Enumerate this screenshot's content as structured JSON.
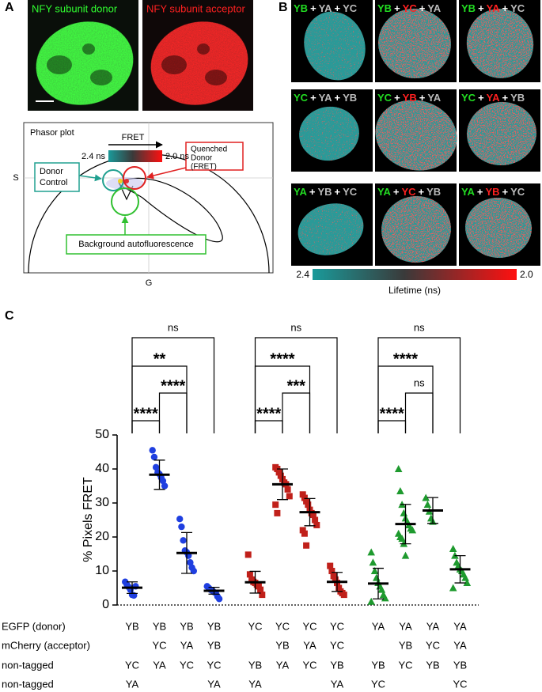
{
  "panel_a": {
    "letter": "A",
    "donor_label": "NFY subunit donor",
    "acceptor_label": "NFY subunit acceptor",
    "phasor": {
      "title": "Phasor plot",
      "arrow_label": "FRET",
      "left_label": "2.4 ns",
      "right_label": "2.0 ns",
      "quenched": [
        "Quenched",
        "Donor",
        "(FRET)"
      ],
      "donor_control": [
        "Donor",
        "Control"
      ],
      "background": "Background autofluorescence",
      "s_label": "S",
      "g_label": "G"
    }
  },
  "panel_b": {
    "letter": "B",
    "tiles": [
      {
        "label": [
          "YB",
          "+",
          "YA",
          "+",
          "YC"
        ],
        "colors": [
          "#22dd22",
          "#ffffff",
          "#bbbbbb",
          "#ffffff",
          "#bbbbbb"
        ]
      },
      {
        "label": [
          "YB",
          "+",
          "YC",
          "+",
          "YA"
        ],
        "colors": [
          "#22dd22",
          "#ffffff",
          "#ff2020",
          "#ffffff",
          "#bbbbbb"
        ]
      },
      {
        "label": [
          "YB",
          "+",
          "YA",
          "+",
          "YC"
        ],
        "colors": [
          "#22dd22",
          "#ffffff",
          "#ff2020",
          "#ffffff",
          "#bbbbbb"
        ]
      },
      {
        "label": [
          "YC",
          "+",
          "YA",
          "+",
          "YB"
        ],
        "colors": [
          "#22dd22",
          "#ffffff",
          "#bbbbbb",
          "#ffffff",
          "#bbbbbb"
        ]
      },
      {
        "label": [
          "YC",
          "+",
          "YB",
          "+",
          "YA"
        ],
        "colors": [
          "#22dd22",
          "#ffffff",
          "#ff2020",
          "#ffffff",
          "#bbbbbb"
        ]
      },
      {
        "label": [
          "YC",
          "+",
          "YA",
          "+",
          "YB"
        ],
        "colors": [
          "#22dd22",
          "#ffffff",
          "#ff2020",
          "#ffffff",
          "#bbbbbb"
        ]
      },
      {
        "label": [
          "YA",
          "+",
          "YB",
          "+",
          "YC"
        ],
        "colors": [
          "#22dd22",
          "#ffffff",
          "#bbbbbb",
          "#ffffff",
          "#bbbbbb"
        ]
      },
      {
        "label": [
          "YA",
          "+",
          "YC",
          "+",
          "YB"
        ],
        "colors": [
          "#22dd22",
          "#ffffff",
          "#ff2020",
          "#ffffff",
          "#bbbbbb"
        ]
      },
      {
        "label": [
          "YA",
          "+",
          "YB",
          "+",
          "YC"
        ],
        "colors": [
          "#22dd22",
          "#ffffff",
          "#ff2020",
          "#ffffff",
          "#bbbbbb"
        ]
      }
    ],
    "colorbar": {
      "left_label": "2.4",
      "right_label": "2.0",
      "title": "Lifetime (ns)"
    }
  },
  "chart_data": {
    "type": "dot",
    "panel_label": "C",
    "ylabel": "% Pixels FRET",
    "ylim": [
      0,
      50
    ],
    "yticks": [
      0,
      10,
      20,
      30,
      40,
      50
    ],
    "groups": [
      {
        "color": "#1f3fe0",
        "marker": "circle",
        "columns": [
          {
            "points": [
              6.8,
              6.0,
              5.3,
              4.5,
              3.0,
              2.8,
              5.5
            ],
            "mean": 5.1,
            "sd": 1.7
          },
          {
            "points": [
              45.5,
              43.5,
              40.5,
              39.0,
              38.5,
              37.5,
              36.5,
              35.0
            ],
            "mean": 38.3,
            "sd": 4.3
          },
          {
            "points": [
              25.3,
              23.0,
              19.0,
              16.0,
              15.5,
              14.5,
              12.5,
              11.0,
              10.0
            ],
            "mean": 15.3,
            "sd": 6.0
          },
          {
            "points": [
              5.5,
              5.0,
              4.5,
              4.2,
              3.8,
              3.5,
              2.5,
              1.8
            ],
            "mean": 4.2,
            "sd": 1.0
          }
        ],
        "comparisons": [
          {
            "between": [
              0,
              3
            ],
            "label": "ns"
          },
          {
            "between": [
              0,
              2
            ],
            "label": "**"
          },
          {
            "between": [
              1,
              2
            ],
            "label": "****"
          },
          {
            "between": [
              0,
              1
            ],
            "label": "****"
          }
        ]
      },
      {
        "color": "#c0201a",
        "marker": "square",
        "columns": [
          {
            "points": [
              14.8,
              9.0,
              7.5,
              6.8,
              6.5,
              6.0,
              5.5,
              4.5,
              3.0
            ],
            "mean": 6.7,
            "sd": 3.2
          },
          {
            "points": [
              40.5,
              40.0,
              39.0,
              38.0,
              37.0,
              36.0,
              35.5,
              34.0,
              32.0,
              29.5,
              27.0
            ],
            "mean": 35.5,
            "sd": 4.5
          },
          {
            "points": [
              32.5,
              31.5,
              30.5,
              29.5,
              28.0,
              27.0,
              26.5,
              25.0,
              23.5,
              22.0,
              21.0,
              17.5
            ],
            "mean": 27.3,
            "sd": 4.0
          },
          {
            "points": [
              11.5,
              10.0,
              8.5,
              7.5,
              6.5,
              5.0,
              4.0,
              3.5,
              3.0
            ],
            "mean": 6.8,
            "sd": 2.8
          }
        ],
        "comparisons": [
          {
            "between": [
              0,
              3
            ],
            "label": "ns"
          },
          {
            "between": [
              0,
              2
            ],
            "label": "****"
          },
          {
            "between": [
              1,
              2
            ],
            "label": "***"
          },
          {
            "between": [
              0,
              1
            ],
            "label": "****"
          }
        ]
      },
      {
        "color": "#1e9a2e",
        "marker": "triangle",
        "columns": [
          {
            "points": [
              15.5,
              12.5,
              10.0,
              8.0,
              6.5,
              5.5,
              4.5,
              3.0,
              2.0,
              1.0
            ],
            "mean": 6.3,
            "sd": 4.5
          },
          {
            "points": [
              40.0,
              33.5,
              29.5,
              27.0,
              25.5,
              24.5,
              23.5,
              22.5,
              22.0,
              21.0,
              20.0,
              19.5,
              18.0,
              14.5
            ],
            "mean": 23.8,
            "sd": 5.8
          },
          {
            "points": [
              31.5,
              29.5,
              27.5,
              25.5,
              24.5
            ],
            "mean": 27.8,
            "sd": 3.8
          },
          {
            "points": [
              16.5,
              14.5,
              12.5,
              11.5,
              10.5,
              10.0,
              9.0,
              8.0,
              6.5,
              5.0
            ],
            "mean": 10.5,
            "sd": 4.0
          }
        ],
        "comparisons": [
          {
            "between": [
              0,
              3
            ],
            "label": "ns"
          },
          {
            "between": [
              0,
              2
            ],
            "label": "****"
          },
          {
            "between": [
              1,
              2
            ],
            "label": "ns"
          },
          {
            "between": [
              0,
              1
            ],
            "label": "****"
          }
        ]
      }
    ],
    "x_table": {
      "row_labels": [
        "EGFP (donor)",
        "mCherry (acceptor)",
        "non-tagged",
        "non-tagged"
      ],
      "rows": [
        [
          "YB",
          "YB",
          "YB",
          "YB",
          "YC",
          "YC",
          "YC",
          "YC",
          "YA",
          "YA",
          "YA",
          "YA"
        ],
        [
          null,
          "YC",
          "YA",
          "YB",
          null,
          "YB",
          "YA",
          "YC",
          null,
          "YB",
          "YC",
          "YA"
        ],
        [
          "YC",
          "YA",
          "YC",
          "YC",
          "YB",
          "YA",
          "YC",
          "YB",
          "YB",
          "YC",
          "YB",
          "YB"
        ],
        [
          "YA",
          null,
          null,
          "YA",
          "YA",
          null,
          null,
          "YA",
          "YC",
          null,
          null,
          "YC"
        ]
      ]
    }
  }
}
